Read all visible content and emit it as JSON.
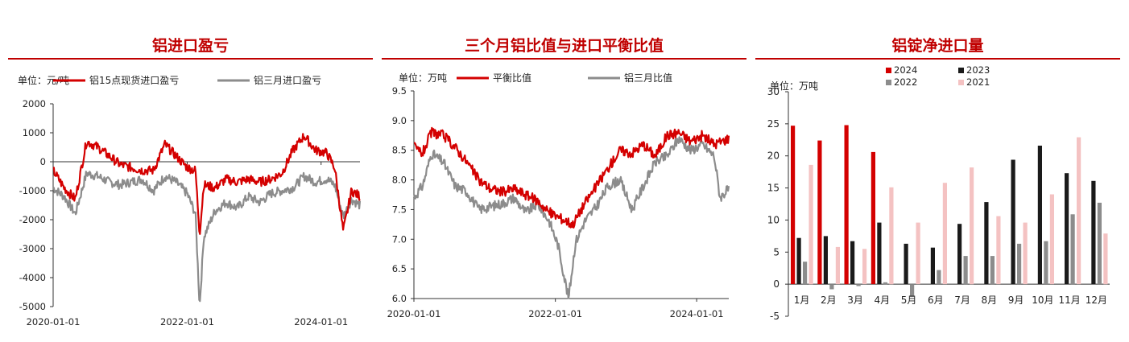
{
  "colors": {
    "accent": "#c00000",
    "red": "#d40000",
    "gray": "#8c8c8c",
    "black": "#1a1a1a",
    "pink": "#f4c2c2"
  },
  "chart_data": [
    {
      "type": "line",
      "title": "铝进口盈亏",
      "unit": "单位：元/吨",
      "ylim": [
        -5000,
        2000
      ],
      "yticks": [
        2000,
        1000,
        0,
        -1000,
        -2000,
        -3000,
        -4000,
        -5000
      ],
      "xticks": [
        "2020-01-01",
        "2022-01-01",
        "2024-01-01"
      ],
      "x_range": [
        "2020-01-01",
        "2024-07-31"
      ],
      "series": [
        {
          "name": "铝15点现货进口盈亏",
          "color": "#d40000",
          "x": [
            "2020-01-01",
            "2020-03-01",
            "2020-05-01",
            "2020-07-01",
            "2020-09-01",
            "2020-11-01",
            "2021-01-01",
            "2021-03-01",
            "2021-05-01",
            "2021-07-01",
            "2021-09-01",
            "2021-11-01",
            "2022-01-01",
            "2022-02-15",
            "2022-03-10",
            "2022-04-01",
            "2022-06-01",
            "2022-08-01",
            "2022-10-01",
            "2022-12-01",
            "2023-02-01",
            "2023-04-01",
            "2023-06-01",
            "2023-08-01",
            "2023-10-01",
            "2023-12-01",
            "2024-02-01",
            "2024-03-15",
            "2024-05-01",
            "2024-06-15",
            "2024-07-31"
          ],
          "y": [
            -300,
            -900,
            -1300,
            700,
            500,
            200,
            -100,
            -200,
            -300,
            -300,
            600,
            200,
            -200,
            -300,
            -2500,
            -800,
            -900,
            -600,
            -700,
            -600,
            -700,
            -600,
            -400,
            400,
            900,
            400,
            300,
            -200,
            -2400,
            -1000,
            -1200
          ]
        },
        {
          "name": "铝三月进口盈亏",
          "color": "#8c8c8c",
          "x": [
            "2020-01-01",
            "2020-03-01",
            "2020-05-01",
            "2020-07-01",
            "2020-09-01",
            "2020-11-01",
            "2021-01-01",
            "2021-03-01",
            "2021-05-01",
            "2021-07-01",
            "2021-09-01",
            "2021-11-01",
            "2022-01-01",
            "2022-02-15",
            "2022-03-10",
            "2022-04-01",
            "2022-06-01",
            "2022-08-01",
            "2022-10-01",
            "2022-12-01",
            "2023-02-01",
            "2023-04-01",
            "2023-06-01",
            "2023-08-01",
            "2023-10-01",
            "2023-12-01",
            "2024-02-01",
            "2024-03-15",
            "2024-05-01",
            "2024-06-15",
            "2024-07-31"
          ],
          "y": [
            -900,
            -1200,
            -1800,
            -400,
            -500,
            -700,
            -800,
            -700,
            -600,
            -1000,
            -500,
            -700,
            -1100,
            -1800,
            -5000,
            -2600,
            -1700,
            -1400,
            -1600,
            -1200,
            -1400,
            -1100,
            -1000,
            -900,
            -500,
            -700,
            -600,
            -800,
            -1900,
            -1300,
            -1500
          ]
        }
      ]
    },
    {
      "type": "line",
      "title": "三个月铝比值与进口平衡比值",
      "unit": "单位：万吨",
      "ylim": [
        6.0,
        9.5
      ],
      "yticks": [
        9.5,
        9.0,
        8.5,
        8.0,
        7.5,
        7.0,
        6.5,
        6.0
      ],
      "xticks": [
        "2020-01-01",
        "2022-01-01",
        "2024-01-01"
      ],
      "x_range": [
        "2020-01-01",
        "2024-06-15"
      ],
      "series": [
        {
          "name": "平衡比值",
          "color": "#d40000",
          "x": [
            "2020-01-01",
            "2020-02-15",
            "2020-04-01",
            "2020-06-01",
            "2020-08-01",
            "2020-10-01",
            "2020-12-01",
            "2021-02-01",
            "2021-04-01",
            "2021-06-01",
            "2021-08-01",
            "2021-10-01",
            "2021-12-01",
            "2022-02-01",
            "2022-04-01",
            "2022-06-01",
            "2022-08-01",
            "2022-10-01",
            "2022-12-01",
            "2023-02-01",
            "2023-04-01",
            "2023-06-01",
            "2023-08-01",
            "2023-10-01",
            "2023-12-01",
            "2024-02-01",
            "2024-04-01",
            "2024-06-15"
          ],
          "y": [
            8.55,
            8.45,
            8.8,
            8.75,
            8.55,
            8.3,
            8.0,
            7.85,
            7.8,
            7.85,
            7.75,
            7.65,
            7.45,
            7.35,
            7.25,
            7.6,
            7.9,
            8.2,
            8.5,
            8.45,
            8.6,
            8.4,
            8.75,
            8.8,
            8.65,
            8.75,
            8.6,
            8.7
          ]
        },
        {
          "name": "铝三月比值",
          "color": "#8c8c8c",
          "x": [
            "2020-01-01",
            "2020-02-15",
            "2020-04-01",
            "2020-06-01",
            "2020-08-01",
            "2020-10-01",
            "2020-12-01",
            "2021-02-01",
            "2021-04-01",
            "2021-06-01",
            "2021-08-01",
            "2021-10-01",
            "2021-12-01",
            "2022-01-15",
            "2022-03-10",
            "2022-04-15",
            "2022-06-01",
            "2022-08-01",
            "2022-10-01",
            "2022-12-01",
            "2023-02-01",
            "2023-04-01",
            "2023-06-01",
            "2023-08-01",
            "2023-10-01",
            "2023-12-01",
            "2024-02-01",
            "2024-04-01",
            "2024-05-01",
            "2024-06-15"
          ],
          "y": [
            7.7,
            7.9,
            8.45,
            8.3,
            7.9,
            7.8,
            7.5,
            7.55,
            7.6,
            7.7,
            7.45,
            7.6,
            7.3,
            6.9,
            6.0,
            6.95,
            7.3,
            7.55,
            7.9,
            8.0,
            7.5,
            7.9,
            8.3,
            8.4,
            8.7,
            8.5,
            8.6,
            8.4,
            7.7,
            7.85
          ]
        }
      ]
    },
    {
      "type": "bar",
      "title": "铝锭净进口量",
      "unit": "单位：万吨",
      "ylim": [
        -5,
        30
      ],
      "yticks": [
        30,
        25,
        20,
        15,
        10,
        5,
        0,
        -5
      ],
      "categories": [
        "1月",
        "2月",
        "3月",
        "4月",
        "5月",
        "6月",
        "7月",
        "8月",
        "9月",
        "10月",
        "11月",
        "12月"
      ],
      "series": [
        {
          "name": "2024",
          "color": "#d40000",
          "values": [
            24.7,
            22.4,
            24.8,
            20.6,
            null,
            null,
            null,
            null,
            null,
            null,
            null,
            null
          ]
        },
        {
          "name": "2023",
          "color": "#1a1a1a",
          "values": [
            7.2,
            7.5,
            6.7,
            9.6,
            6.3,
            5.7,
            9.4,
            12.8,
            19.4,
            21.6,
            17.3,
            16.1
          ]
        },
        {
          "name": "2022",
          "color": "#8c8c8c",
          "values": [
            3.5,
            -0.8,
            -0.3,
            0.3,
            -2.0,
            2.2,
            4.4,
            4.4,
            6.3,
            6.7,
            10.9,
            12.7
          ]
        },
        {
          "name": "2021",
          "color": "#f4c2c2",
          "values": [
            18.6,
            5.8,
            5.5,
            15.1,
            9.6,
            15.8,
            18.2,
            10.6,
            9.6,
            14.0,
            22.9,
            7.9
          ]
        }
      ]
    }
  ]
}
